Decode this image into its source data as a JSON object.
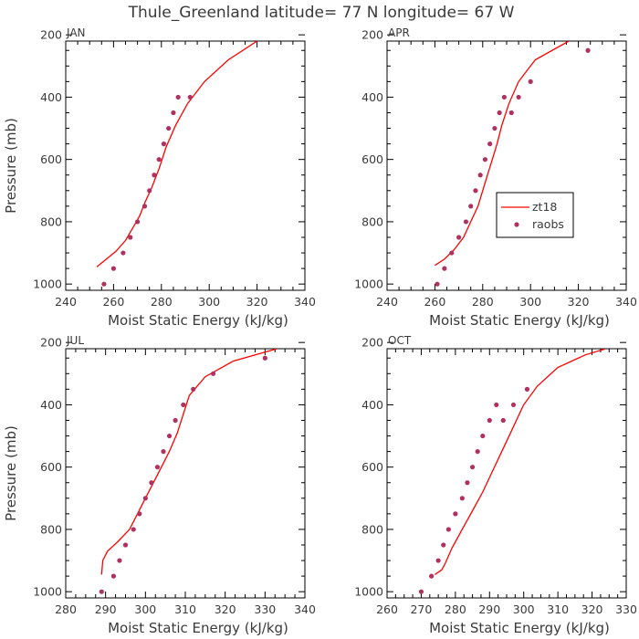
{
  "figure": {
    "title": "Thule_Greenland  latitude= 77 N longitude= 67 W"
  },
  "legend": {
    "model_label": "zt18",
    "obs_label": "raobs"
  },
  "colors": {
    "model": "#ff0000",
    "obs": "#b03060",
    "axis": "#000000",
    "text": "#3a3a3a"
  },
  "chart_data": [
    {
      "type": "line",
      "panel_label": "JAN",
      "xlabel": "Moist Static Energy (kJ/kg)",
      "ylabel": "Pressure (mb)",
      "xlim": [
        240,
        340
      ],
      "ylim": [
        1000,
        200
      ],
      "xticks": [
        240,
        260,
        280,
        300,
        320,
        340
      ],
      "yticks": [
        200,
        400,
        600,
        800,
        1000
      ],
      "series": [
        {
          "name": "zt18",
          "kind": "line",
          "x": [
            253,
            257,
            261,
            265,
            268,
            271,
            273,
            276,
            279,
            282,
            286,
            291,
            298,
            308,
            320
          ],
          "y": [
            945,
            920,
            895,
            860,
            820,
            780,
            740,
            690,
            630,
            560,
            490,
            420,
            350,
            280,
            220
          ]
        },
        {
          "name": "raobs",
          "kind": "points",
          "x": [
            256,
            260,
            264,
            267,
            270,
            273,
            275,
            277,
            279,
            281,
            283,
            285,
            287,
            292
          ],
          "y": [
            1000,
            950,
            900,
            850,
            800,
            750,
            700,
            650,
            600,
            550,
            500,
            450,
            400,
            400
          ]
        }
      ]
    },
    {
      "type": "line",
      "panel_label": "APR",
      "xlabel": "Moist Static Energy (kJ/kg)",
      "ylabel": "",
      "xlim": [
        240,
        340
      ],
      "ylim": [
        1000,
        200
      ],
      "xticks": [
        240,
        260,
        280,
        300,
        320,
        340
      ],
      "yticks": [
        200,
        400,
        600,
        800,
        1000
      ],
      "series": [
        {
          "name": "zt18",
          "kind": "line",
          "x": [
            260,
            264,
            268,
            272,
            275,
            278,
            280,
            282,
            284,
            286,
            288,
            291,
            295,
            302,
            316
          ],
          "y": [
            940,
            920,
            890,
            850,
            800,
            750,
            700,
            650,
            600,
            550,
            490,
            420,
            350,
            280,
            220
          ]
        },
        {
          "name": "raobs",
          "kind": "points",
          "x": [
            261,
            264,
            267,
            270,
            273,
            275,
            277,
            279,
            281,
            283,
            285,
            287,
            289,
            292,
            295,
            300,
            324
          ],
          "y": [
            1000,
            950,
            900,
            850,
            800,
            750,
            700,
            650,
            600,
            550,
            500,
            450,
            400,
            450,
            400,
            350,
            250
          ]
        }
      ]
    },
    {
      "type": "line",
      "panel_label": "JUL",
      "xlabel": "Moist Static Energy (kJ/kg)",
      "ylabel": "Pressure (mb)",
      "xlim": [
        280,
        340
      ],
      "ylim": [
        1000,
        200
      ],
      "xticks": [
        280,
        290,
        300,
        310,
        320,
        330,
        340
      ],
      "yticks": [
        200,
        400,
        600,
        800,
        1000
      ],
      "series": [
        {
          "name": "zt18",
          "kind": "line",
          "x": [
            289,
            289.3,
            290.5,
            293,
            296,
            298,
            300,
            302,
            304,
            306,
            308,
            309.5,
            311,
            315,
            322,
            333
          ],
          "y": [
            945,
            900,
            870,
            840,
            800,
            750,
            700,
            650,
            600,
            550,
            490,
            430,
            370,
            310,
            260,
            220
          ]
        },
        {
          "name": "raobs",
          "kind": "points",
          "x": [
            289,
            292,
            293.5,
            295,
            297,
            298.5,
            300,
            301.5,
            303,
            304.5,
            306,
            307.5,
            309.5,
            312,
            317,
            330
          ],
          "y": [
            1000,
            950,
            900,
            850,
            800,
            750,
            700,
            650,
            600,
            550,
            500,
            450,
            400,
            350,
            300,
            250
          ]
        }
      ]
    },
    {
      "type": "line",
      "panel_label": "OCT",
      "xlabel": "Moist Static Energy (kJ/kg)",
      "ylabel": "",
      "xlim": [
        260,
        330
      ],
      "ylim": [
        1000,
        200
      ],
      "xticks": [
        260,
        270,
        280,
        290,
        300,
        310,
        320,
        330
      ],
      "yticks": [
        200,
        400,
        600,
        800,
        1000
      ],
      "series": [
        {
          "name": "zt18",
          "kind": "line",
          "x": [
            274,
            276,
            277,
            279,
            282,
            285,
            288,
            291,
            294,
            297,
            300,
            304,
            310,
            318,
            324
          ],
          "y": [
            945,
            930,
            910,
            860,
            800,
            740,
            680,
            610,
            540,
            470,
            400,
            340,
            280,
            240,
            220
          ]
        },
        {
          "name": "raobs",
          "kind": "points",
          "x": [
            270,
            273,
            275,
            276.5,
            278,
            280,
            282,
            283.5,
            285,
            286.5,
            288,
            290,
            292,
            294,
            297,
            301
          ],
          "y": [
            1000,
            950,
            900,
            850,
            800,
            750,
            700,
            650,
            600,
            550,
            500,
            450,
            400,
            450,
            400,
            350
          ]
        }
      ]
    }
  ]
}
